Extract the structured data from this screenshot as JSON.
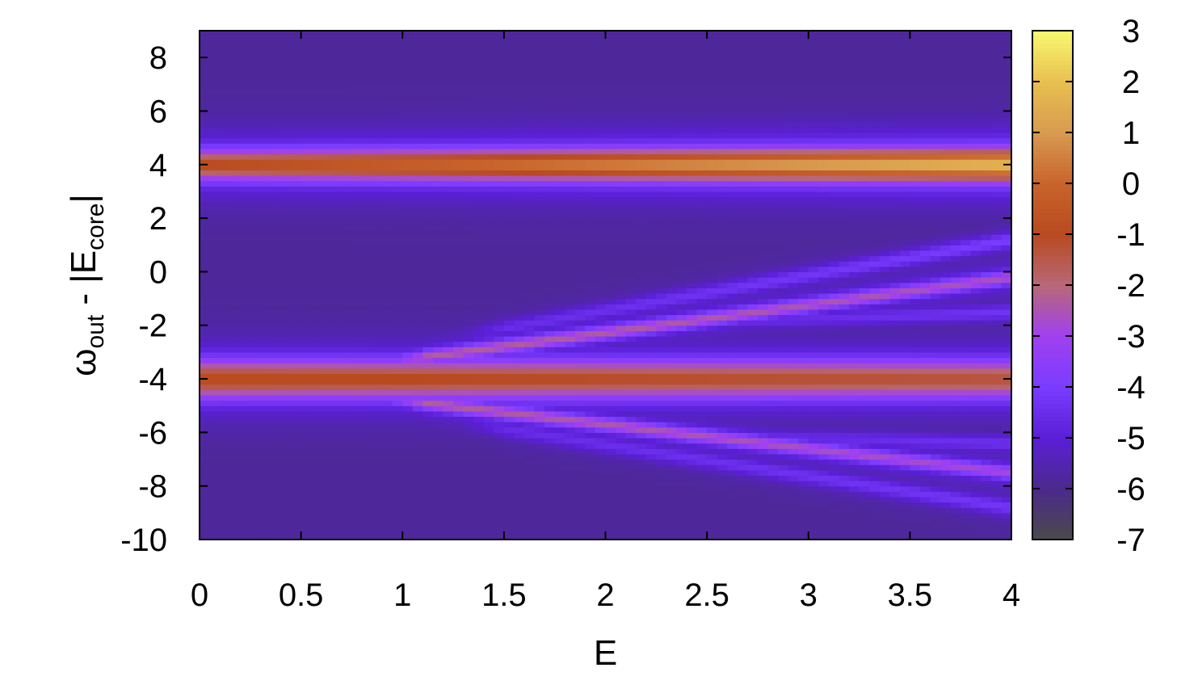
{
  "chart_data": {
    "type": "heatmap",
    "xlabel": "E",
    "ylabel": {
      "symbol": "ω",
      "symbol_sub": "out",
      "middle": " - |E",
      "middle_sub": "core",
      "end": "|"
    },
    "xlim": [
      0,
      4
    ],
    "ylim": [
      -10,
      9
    ],
    "x_ticks": [
      0,
      0.5,
      1,
      1.5,
      2,
      2.5,
      3,
      3.5,
      4
    ],
    "x_tick_labels": [
      "0",
      "0.5",
      "1",
      "1.5",
      "2",
      "2.5",
      "3",
      "3.5",
      "4"
    ],
    "y_ticks": [
      -10,
      -8,
      -6,
      -4,
      -2,
      0,
      2,
      4,
      6,
      8
    ],
    "y_tick_labels": [
      "-10",
      "-8",
      "-6",
      "-4",
      "-2",
      "0",
      "2",
      "4",
      "6",
      "8"
    ],
    "colorbar": {
      "range": [
        -7,
        3
      ],
      "ticks": [
        -7,
        -6,
        -5,
        -4,
        -3,
        -2,
        -1,
        0,
        1,
        2,
        3
      ],
      "tick_labels": [
        "-7",
        "-6",
        "-5",
        "-4",
        "-3",
        "-2",
        "-1",
        "0",
        "1",
        "2",
        "3"
      ],
      "colors": [
        "#4a4a4a",
        "#4b2a8c",
        "#5a1fd6",
        "#7a3cff",
        "#a040f0",
        "#b86878",
        "#b84a20",
        "#c8642c",
        "#d89a50",
        "#e8c050",
        "#f8f870"
      ]
    },
    "background_value": -5.8,
    "features": [
      {
        "name": "upper band",
        "E_start": 0,
        "E_end": 4,
        "y_start": 4.0,
        "y_end": 4.0,
        "peak_start": -0.8,
        "peak_end": 1.8,
        "width": 0.55,
        "halo": 1.3
      },
      {
        "name": "lower band center",
        "E_start": 0,
        "E_end": 4,
        "y_start": -4.0,
        "y_end": -4.0,
        "peak_start": -0.8,
        "peak_end": -1.3,
        "width": 0.7,
        "halo": 1.4
      },
      {
        "name": "rising branch",
        "E_start": 0.8,
        "E_end": 4,
        "y_start": -3.5,
        "y_end": -0.2,
        "peak_start": -2.2,
        "peak_end": -2.6,
        "width": 0.25,
        "halo": 0.8
      },
      {
        "name": "falling branch",
        "E_start": 0.8,
        "E_end": 4,
        "y_start": -4.6,
        "y_end": -7.5,
        "peak_start": -2.2,
        "peak_end": -2.8,
        "width": 0.25,
        "halo": 0.8
      },
      {
        "name": "upper faint branch",
        "E_start": 1.2,
        "E_end": 4,
        "y_start": -2.5,
        "y_end": 1.2,
        "peak_start": -4.6,
        "peak_end": -4.0,
        "width": 0.3,
        "halo": 0.6
      },
      {
        "name": "lower faint branch",
        "E_start": 1.2,
        "E_end": 4,
        "y_start": -5.5,
        "y_end": -8.8,
        "peak_start": -4.6,
        "peak_end": -4.2,
        "width": 0.3,
        "halo": 0.6
      },
      {
        "name": "faint sideband",
        "E_start": 2,
        "E_end": 4,
        "y_start": -2.0,
        "y_end": -1.5,
        "peak_start": -4.8,
        "peak_end": -4.3,
        "width": 0.3,
        "halo": 0.5
      },
      {
        "name": "faint sideband 2",
        "E_start": 2,
        "E_end": 4,
        "y_start": -6.0,
        "y_end": -6.4,
        "peak_start": -4.8,
        "peak_end": -4.4,
        "width": 0.3,
        "halo": 0.5
      }
    ]
  }
}
